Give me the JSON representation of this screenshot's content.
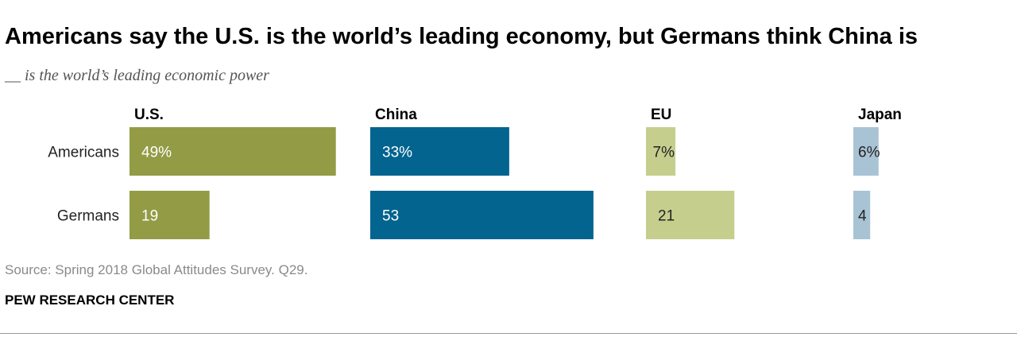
{
  "title": "Americans say the U.S. is the world’s leading economy, but Germans think China is",
  "subtitle": "__ is the world’s leading economic power",
  "source": "Source: Spring 2018 Global Attitudes Survey. Q29.",
  "brand": "PEW RESEARCH CENTER",
  "chart_data": {
    "type": "bar",
    "orientation": "horizontal",
    "layout": "small-multiples",
    "title": "Americans say the U.S. is the world’s leading economy, but Germans think China is",
    "subtitle": "__ is the world’s leading economic power",
    "categories": [
      "Americans",
      "Germans"
    ],
    "series": [
      {
        "name": "U.S.",
        "values": [
          49,
          19
        ],
        "labels": [
          "49%",
          "19"
        ],
        "color": "#939b45",
        "label_color": "#ffffff"
      },
      {
        "name": "China",
        "values": [
          33,
          53
        ],
        "labels": [
          "33%",
          "53"
        ],
        "color": "#02648f",
        "label_color": "#ffffff"
      },
      {
        "name": "EU",
        "values": [
          7,
          21
        ],
        "labels": [
          "7%",
          "21"
        ],
        "color": "#c6ce8d",
        "label_color": "#222222"
      },
      {
        "name": "Japan",
        "values": [
          6,
          4
        ],
        "labels": [
          "6%",
          "4"
        ],
        "color": "#a8c3d4",
        "label_color": "#222222"
      }
    ],
    "unit": "%",
    "xlabel": "",
    "ylabel": ""
  }
}
